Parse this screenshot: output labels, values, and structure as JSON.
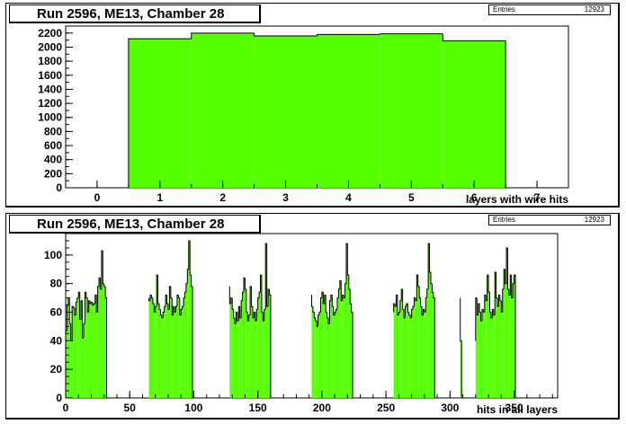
{
  "chart_data": [
    {
      "type": "bar",
      "title": "Run 2596, ME13, Chamber 28",
      "stats": {
        "label": "Entries",
        "value": "12923"
      },
      "xlabel": "layers with wire hits",
      "ylabel": "",
      "xlim": [
        -0.5,
        7.5
      ],
      "ylim": [
        0,
        2300
      ],
      "xticks": [
        0,
        1,
        2,
        3,
        4,
        5,
        6,
        7
      ],
      "yticks": [
        0,
        200,
        400,
        600,
        800,
        1000,
        1200,
        1400,
        1600,
        1800,
        2000,
        2200
      ],
      "bin_width": 1,
      "x": [
        1,
        2,
        3,
        4,
        5,
        6
      ],
      "values": [
        2120,
        2200,
        2160,
        2180,
        2190,
        2090
      ],
      "fill_color": "#55ff00"
    },
    {
      "type": "bar",
      "title": "Run 2596, ME13, Chamber 28",
      "stats": {
        "label": "Entries",
        "value": "12923"
      },
      "xlabel": "hits in all layers",
      "ylabel": "",
      "xlim": [
        0,
        384
      ],
      "ylim": [
        0,
        115
      ],
      "xticks": [
        0,
        50,
        100,
        150,
        200,
        250,
        300,
        350
      ],
      "yticks": [
        0,
        20,
        40,
        60,
        80,
        100
      ],
      "bin_width": 1,
      "x_start": 0,
      "values": [
        47,
        65,
        70,
        52,
        40,
        64,
        63,
        58,
        67,
        70,
        74,
        55,
        68,
        42,
        52,
        74,
        70,
        60,
        68,
        66,
        67,
        65,
        66,
        72,
        60,
        78,
        84,
        76,
        103,
        80,
        78,
        70,
        0,
        0,
        0,
        0,
        0,
        0,
        0,
        0,
        0,
        0,
        0,
        0,
        0,
        0,
        0,
        0,
        0,
        0,
        0,
        0,
        0,
        0,
        0,
        0,
        0,
        0,
        0,
        0,
        0,
        0,
        0,
        0,
        0,
        0,
        0,
        0,
        0,
        0,
        0,
        0,
        0,
        0,
        0,
        0,
        0,
        0,
        0,
        0,
        0,
        0,
        0,
        0,
        0,
        0,
        0,
        0,
        0,
        0,
        0,
        0,
        0,
        0,
        0,
        0,
        0,
        0,
        0,
        0,
        0,
        0,
        0,
        0,
        0,
        0,
        0,
        0,
        0,
        0,
        0,
        0,
        0,
        0,
        0,
        0,
        0,
        0,
        0,
        0,
        0,
        0,
        0,
        0,
        0,
        0,
        0,
        0,
        0,
        0,
        0,
        0,
        0,
        0,
        0,
        0,
        0,
        0,
        0,
        0,
        0,
        0,
        0,
        0,
        0,
        0,
        0,
        0,
        0,
        0,
        0,
        0,
        0,
        0,
        0,
        0,
        0,
        0,
        0,
        0,
        0,
        0,
        0,
        0,
        0,
        0,
        0,
        0,
        0,
        0,
        0,
        0,
        0,
        0,
        0,
        0,
        0,
        0,
        0,
        0,
        0,
        0,
        0,
        0,
        0,
        0,
        0,
        0,
        0,
        0,
        0,
        0,
        0,
        0,
        0,
        0,
        0,
        0,
        0,
        0,
        0,
        0,
        0,
        0,
        0,
        0,
        0,
        0,
        0,
        0,
        0,
        0,
        0,
        0,
        0,
        0,
        0,
        0,
        0,
        0,
        0,
        0,
        0,
        0,
        0,
        0,
        0,
        0,
        0,
        0,
        0,
        0,
        0,
        0,
        0,
        0,
        0,
        0,
        0,
        0,
        0,
        0,
        0,
        0,
        0,
        0,
        0,
        0,
        0,
        0,
        0,
        0,
        0,
        0,
        0,
        0,
        0,
        0,
        0,
        0,
        0,
        0,
        0,
        0,
        0,
        0,
        0,
        0,
        0,
        0,
        0,
        0,
        0,
        0,
        0,
        0,
        0,
        0,
        0,
        0,
        0,
        0,
        0,
        0,
        0,
        0,
        0,
        0,
        0,
        0,
        0,
        0,
        0,
        0,
        0,
        0,
        0,
        0,
        0,
        0,
        0,
        0,
        0,
        0,
        0,
        0,
        0,
        0,
        0,
        0,
        0,
        0,
        0,
        0,
        0,
        0,
        0,
        0,
        0,
        0,
        0,
        0,
        0,
        0,
        0,
        0,
        0,
        0,
        0,
        0,
        0,
        0,
        0,
        0,
        0,
        0,
        0,
        0,
        0,
        0,
        0,
        0,
        0
      ],
      "clusters": [
        {
          "start": 0,
          "values": [
            47,
            65,
            70,
            52,
            40,
            64,
            63,
            58,
            67,
            70,
            74,
            55,
            68,
            42,
            52,
            74,
            70,
            60,
            68,
            66,
            67,
            65,
            66,
            72,
            60,
            78,
            84,
            76,
            103,
            80,
            78,
            70
          ]
        },
        {
          "start": 65,
          "values": [
            68,
            72,
            70,
            66,
            60,
            64,
            86,
            66,
            62,
            58,
            56,
            60,
            64,
            72,
            66,
            62,
            78,
            70,
            58,
            64,
            60,
            64,
            72,
            70,
            58,
            62,
            64,
            70,
            74,
            80,
            90,
            110,
            86,
            78
          ]
        },
        {
          "start": 128,
          "values": [
            66,
            70,
            62,
            56,
            52,
            60,
            54,
            64,
            56,
            68,
            74,
            84,
            76,
            60,
            54,
            58,
            78,
            64,
            56,
            60,
            54,
            62,
            70,
            74,
            86,
            60,
            54,
            62,
            108,
            64,
            76,
            72
          ]
        },
        {
          "start": 192,
          "values": [
            64,
            60,
            56,
            54,
            50,
            58,
            60,
            70,
            74,
            66,
            72,
            60,
            56,
            52,
            68,
            72,
            64,
            58,
            60,
            62,
            70,
            76,
            82,
            68,
            72,
            70,
            80,
            108,
            86,
            76,
            66,
            60
          ]
        },
        {
          "start": 256,
          "values": [
            66,
            64,
            72,
            58,
            60,
            68,
            76,
            62,
            56,
            64,
            66,
            60,
            58,
            56,
            62,
            64,
            70,
            68,
            86,
            78,
            70,
            64,
            58,
            62,
            60,
            70,
            76,
            108,
            88,
            80,
            74,
            70
          ]
        },
        {
          "start": 320,
          "values": [
            70,
            58,
            66,
            60,
            54,
            62,
            60,
            72,
            68,
            86,
            74,
            60,
            56,
            62,
            58,
            88,
            70,
            64,
            72,
            68,
            60,
            76,
            90,
            80,
            105,
            76,
            72,
            86,
            70,
            80,
            86
          ]
        }
      ],
      "spike": {
        "x": 308,
        "value": 40
      },
      "fill_color": "#55ff00"
    }
  ]
}
